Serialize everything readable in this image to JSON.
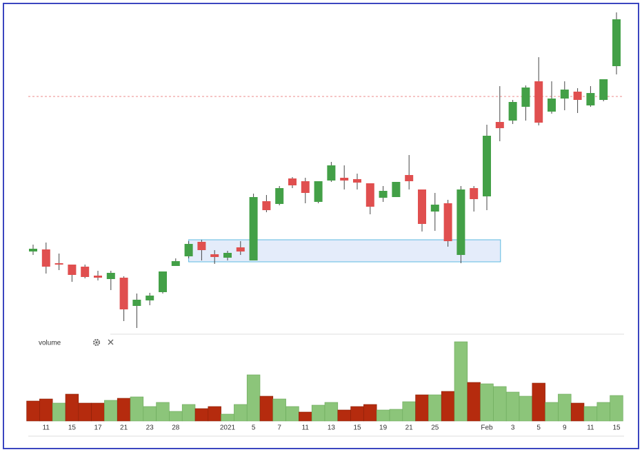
{
  "chart_data": {
    "type": "candlestick",
    "categories": [
      null,
      "11",
      null,
      "15",
      null,
      "17",
      null,
      "21",
      null,
      "23",
      null,
      "28",
      null,
      null,
      null,
      "2021",
      null,
      "5",
      null,
      "7",
      null,
      "11",
      null,
      "13",
      null,
      "15",
      null,
      "19",
      null,
      "21",
      null,
      "25",
      null,
      null,
      null,
      "Feb",
      null,
      "3",
      null,
      "5",
      null,
      "9",
      null,
      "11",
      null,
      "15"
    ],
    "open": [
      135,
      138,
      118,
      116,
      113,
      100,
      95,
      97,
      56,
      64,
      76,
      114,
      128,
      149,
      131,
      126,
      141,
      122,
      208,
      204,
      241,
      237,
      207,
      238,
      242,
      240,
      234,
      213,
      214,
      246,
      225,
      193,
      205,
      130,
      227,
      215,
      323,
      325,
      345,
      382,
      338,
      357,
      367,
      347,
      355,
      404
    ],
    "high": [
      145,
      148,
      132,
      116,
      116,
      107,
      107,
      99,
      74,
      75,
      106,
      125,
      150,
      152,
      137,
      136,
      150,
      219,
      217,
      230,
      243,
      242,
      237,
      265,
      260,
      248,
      234,
      230,
      236,
      275,
      225,
      220,
      210,
      230,
      230,
      319,
      375,
      355,
      376,
      417,
      382,
      382,
      372,
      375,
      385,
      482
    ],
    "low": [
      130,
      103,
      108,
      91,
      96,
      93,
      79,
      34,
      24,
      57,
      74,
      114,
      125,
      122,
      117,
      122,
      130,
      122,
      192,
      202,
      227,
      205,
      205,
      236,
      225,
      225,
      189,
      207,
      214,
      225,
      164,
      165,
      142,
      118,
      193,
      195,
      295,
      320,
      325,
      318,
      335,
      340,
      336,
      345,
      353,
      392
    ],
    "close": [
      139,
      113,
      116,
      101,
      98,
      97,
      104,
      51,
      65,
      71,
      106,
      121,
      146,
      137,
      127,
      133,
      135,
      214,
      195,
      227,
      231,
      220,
      237,
      260,
      238,
      235,
      200,
      223,
      236,
      237,
      175,
      203,
      150,
      225,
      211,
      303,
      314,
      352,
      373,
      322,
      357,
      370,
      355,
      365,
      385,
      472
    ],
    "up_color": "#43a047",
    "down_color": "#e04f4f",
    "price_line": 360,
    "zone": {
      "low": 120,
      "high": 152
    },
    "volume": {
      "name": "volume",
      "values": [
        29,
        32,
        26,
        39,
        26,
        26,
        30,
        33,
        35,
        21,
        27,
        14,
        24,
        18,
        21,
        10,
        24,
        67,
        36,
        32,
        21,
        13,
        23,
        27,
        16,
        21,
        24,
        16,
        17,
        28,
        38,
        38,
        43,
        115,
        56,
        54,
        50,
        42,
        36,
        55,
        27,
        39,
        26,
        21,
        27,
        37
      ],
      "colors": [
        "#b52b0e",
        "#b52b0e",
        "#8cc57a",
        "#b52b0e",
        "#b52b0e",
        "#b52b0e",
        "#8cc57a",
        "#b52b0e",
        "#8cc57a",
        "#8cc57a",
        "#8cc57a",
        "#8cc57a",
        "#8cc57a",
        "#b52b0e",
        "#b52b0e",
        "#8cc57a",
        "#8cc57a",
        "#8cc57a",
        "#b52b0e",
        "#8cc57a",
        "#8cc57a",
        "#b52b0e",
        "#8cc57a",
        "#8cc57a",
        "#b52b0e",
        "#b52b0e",
        "#b52b0e",
        "#8cc57a",
        "#8cc57a",
        "#8cc57a",
        "#b52b0e",
        "#8cc57a",
        "#b52b0e",
        "#8cc57a",
        "#b52b0e",
        "#8cc57a",
        "#8cc57a",
        "#8cc57a",
        "#8cc57a",
        "#b52b0e",
        "#8cc57a",
        "#8cc57a",
        "#b52b0e",
        "#8cc57a",
        "#8cc57a",
        "#8cc57a"
      ]
    }
  }
}
